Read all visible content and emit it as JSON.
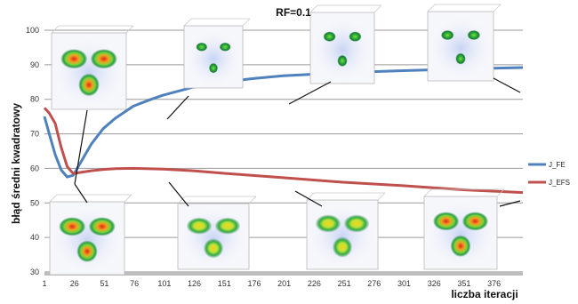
{
  "chart_data": {
    "type": "line",
    "title": "RF=0.1",
    "xlabel": "liczba iteracji",
    "ylabel": "błąd średni kwadratowy",
    "ylim": [
      30,
      100
    ],
    "xlim": [
      1,
      400
    ],
    "y_ticks": [
      "30",
      "40",
      "50",
      "60",
      "70",
      "80",
      "90",
      "100"
    ],
    "x_ticks": [
      "1",
      "26",
      "51",
      "76",
      "101",
      "126",
      "151",
      "176",
      "201",
      "226",
      "251",
      "276",
      "301",
      "326",
      "351",
      "376"
    ],
    "grid": true,
    "legend": "right",
    "series": [
      {
        "name": "J_FE",
        "color": "#4f81bd",
        "x": [
          1,
          5,
          10,
          15,
          20,
          25,
          30,
          40,
          50,
          60,
          75,
          90,
          100,
          125,
          150,
          175,
          200,
          250,
          300,
          350,
          400
        ],
        "y": [
          75,
          70,
          64,
          59.5,
          57.5,
          58,
          61,
          67,
          71.5,
          74.5,
          78,
          80,
          81.2,
          83.5,
          85,
          86,
          86.8,
          87.7,
          88.3,
          88.8,
          89.2
        ]
      },
      {
        "name": "J_EFS",
        "color": "#c0504d",
        "x": [
          1,
          5,
          10,
          15,
          20,
          25,
          30,
          40,
          50,
          60,
          75,
          100,
          125,
          150,
          200,
          250,
          300,
          350,
          400
        ],
        "y": [
          77.5,
          76,
          73,
          66,
          60.5,
          58.5,
          58.8,
          59.3,
          59.7,
          59.9,
          60,
          59.8,
          59.3,
          58.6,
          57.3,
          56,
          55,
          53.8,
          53
        ]
      }
    ]
  }
}
